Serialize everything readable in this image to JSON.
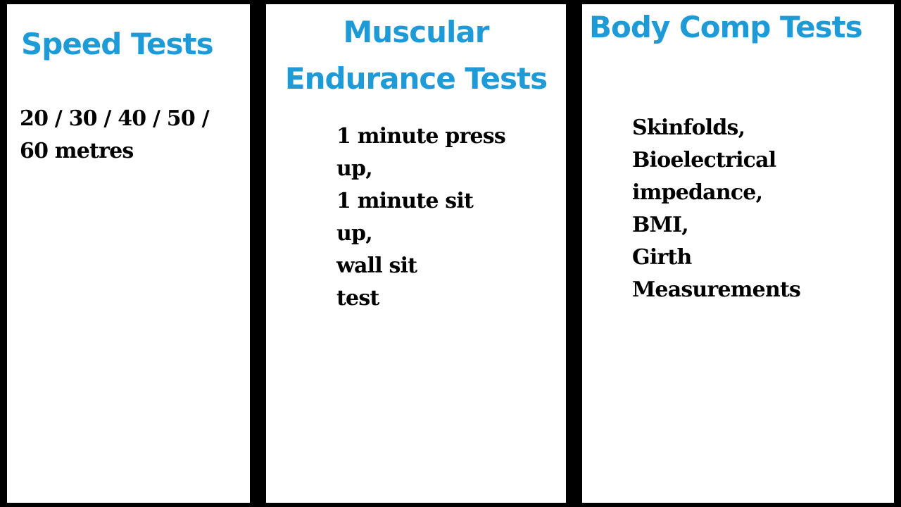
{
  "colors": {
    "heading": "#1e9ad6",
    "text": "#000000",
    "background": "#ffffff",
    "divider": "#000000"
  },
  "columns": [
    {
      "title_lines": [
        "Speed Tests"
      ],
      "body_lines": [
        "20 / 30 / 40 / 50 /",
        "60 metres"
      ]
    },
    {
      "title_lines": [
        "Muscular",
        "Endurance Tests"
      ],
      "body_lines": [
        "1 minute press",
        "up,",
        "1 minute sit",
        "up,",
        "wall sit",
        "test"
      ]
    },
    {
      "title_lines": [
        "Body Comp Tests"
      ],
      "body_lines": [
        "Skinfolds,",
        "Bioelectrical",
        "impedance,",
        "BMI,",
        "Girth",
        "Measurements"
      ]
    }
  ]
}
